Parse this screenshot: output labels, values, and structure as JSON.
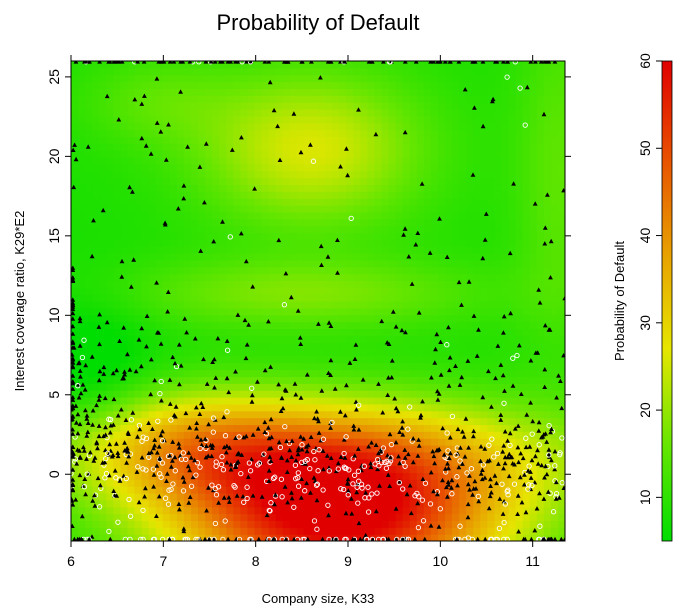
{
  "chart_data": {
    "type": "heatmap",
    "title": "Probability of Default",
    "xlabel": "Company size, K33",
    "ylabel": "Interest coverage ratio, K29*E2",
    "xlim": [
      6.0,
      11.35
    ],
    "ylim": [
      -4.2,
      26.0
    ],
    "x_ticks": [
      6,
      7,
      8,
      9,
      10,
      11
    ],
    "y_ticks": [
      0,
      5,
      10,
      15,
      20,
      25
    ],
    "grid": false,
    "colorbar": {
      "label": "Probability of Default",
      "range": [
        5,
        60
      ],
      "ticks": [
        10,
        20,
        30,
        40,
        50,
        60
      ],
      "colors": [
        "#00dd00",
        "#66e600",
        "#e6e600",
        "#e8a000",
        "#e85000",
        "#e00000"
      ]
    },
    "series": [
      {
        "marker": "filled-triangle",
        "color": "#000000"
      },
      {
        "marker": "open-circle",
        "color": "#ffffff"
      }
    ]
  }
}
